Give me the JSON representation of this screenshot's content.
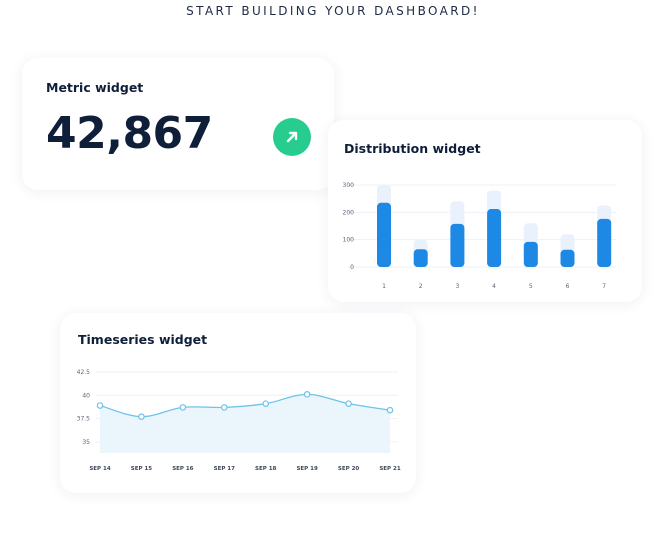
{
  "headline": "START BUILDING YOUR DASHBOARD!",
  "metric_widget": {
    "title": "Metric widget",
    "value": "42,867",
    "trend_icon": "arrow-up-right-icon",
    "trend_color": "#27cc8e"
  },
  "distribution_widget": {
    "title": "Distribution widget",
    "colors": {
      "primary": "#1e88e5",
      "background_bar": "#e8f1fc"
    }
  },
  "timeseries_widget": {
    "title": "Timeseries widget",
    "colors": {
      "line": "#6ec3ea",
      "fill": "#eaf6fc"
    }
  },
  "chart_data": [
    {
      "type": "bar",
      "categories": [
        "1",
        "2",
        "3",
        "4",
        "5",
        "6",
        "7"
      ],
      "series": [
        {
          "values": [
            300,
            100,
            240,
            280,
            160,
            120,
            225
          ]
        },
        {
          "values": [
            235,
            65,
            158,
            212,
            92,
            63,
            176
          ]
        }
      ],
      "y_ticks": [
        "0",
        "100",
        "200",
        "300"
      ],
      "ylim": [
        0,
        300
      ],
      "grid": true
    },
    {
      "type": "area",
      "x": [
        "SEP 14",
        "SEP 15",
        "SEP 16",
        "SEP 17",
        "SEP 18",
        "SEP 19",
        "SEP 20",
        "SEP 21"
      ],
      "values": [
        38.9,
        37.7,
        38.7,
        38.7,
        39.1,
        40.1,
        39.1,
        38.4
      ],
      "y_ticks": [
        "42.5",
        "40",
        "37.5",
        "35"
      ],
      "ylim": [
        33.8,
        42.5
      ],
      "grid": true
    }
  ]
}
